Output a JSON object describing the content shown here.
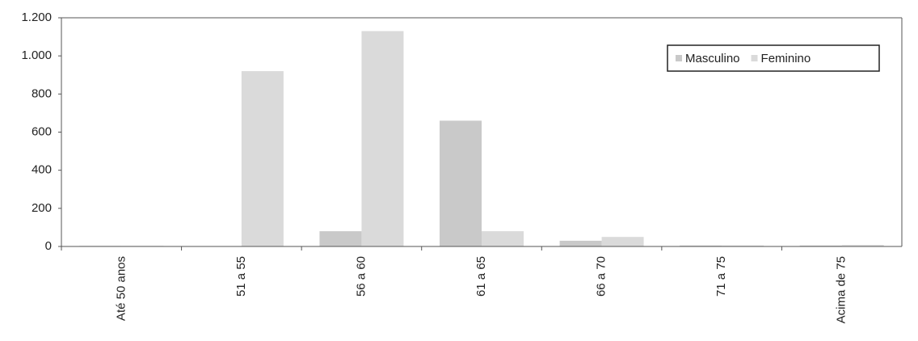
{
  "chart_data": {
    "type": "bar",
    "categories": [
      "Até 50 anos",
      "51 a 55",
      "56 a 60",
      "61 a 65",
      "66 a 70",
      "71 a 75",
      "Acima de 75"
    ],
    "series": [
      {
        "name": "Masculino",
        "color": "#c9c9c9",
        "values": [
          3,
          0,
          80,
          660,
          30,
          5,
          5
        ]
      },
      {
        "name": "Feminino",
        "color": "#dadada",
        "values": [
          3,
          920,
          1130,
          80,
          50,
          5,
          8
        ]
      }
    ],
    "ylim": [
      0,
      1200
    ],
    "yticks": [
      0,
      200,
      400,
      600,
      800,
      {
        "value": 1000,
        "label": "1.000"
      },
      {
        "value": 1200,
        "label": "1.200"
      }
    ],
    "legend": "top-right"
  }
}
